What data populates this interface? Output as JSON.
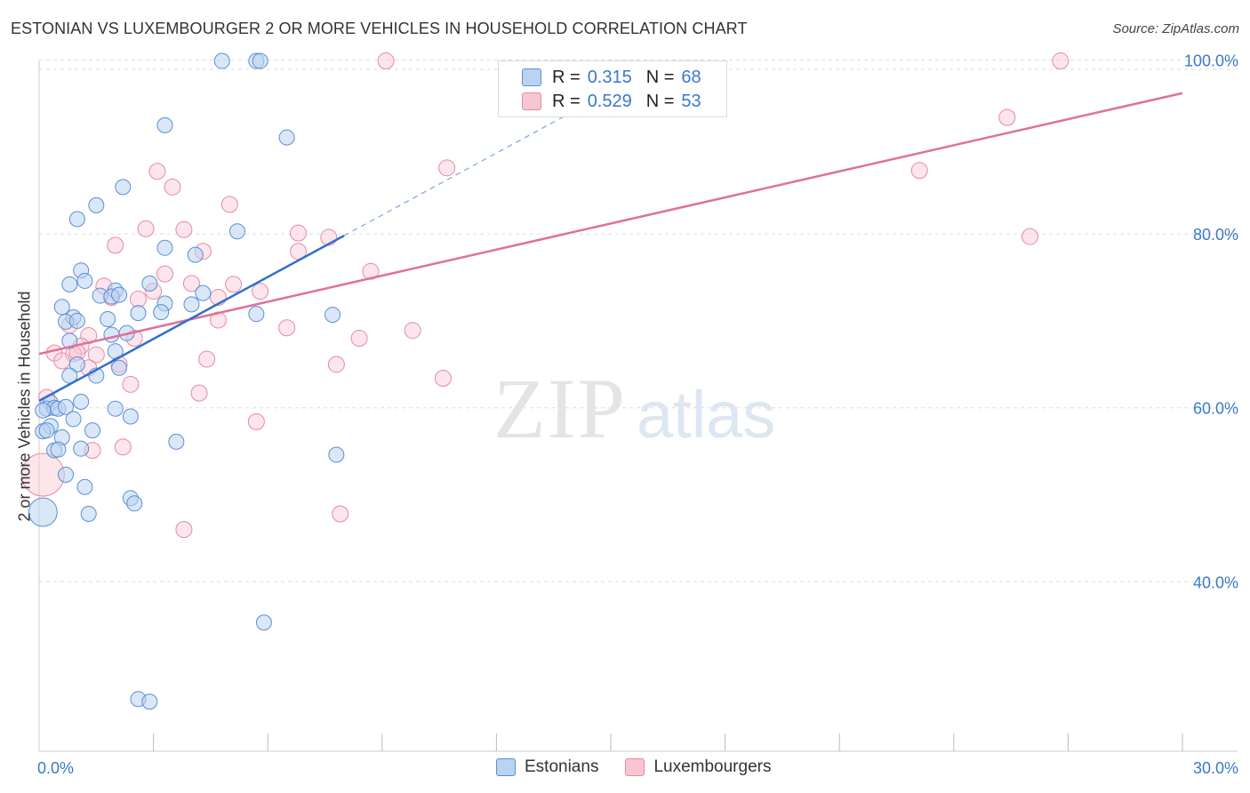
{
  "title": "ESTONIAN VS LUXEMBOURGER 2 OR MORE VEHICLES IN HOUSEHOLD CORRELATION CHART",
  "source": "Source: ZipAtlas.com",
  "watermark": {
    "zip": "ZIP",
    "atlas": "atlas"
  },
  "legend_top": [
    {
      "r_label": "R =",
      "r_value": "0.315",
      "n_label": "N =",
      "n_value": "68"
    },
    {
      "r_label": "R =",
      "r_value": "0.529",
      "n_label": "N =",
      "n_value": "53"
    }
  ],
  "legend_bottom": [
    {
      "label": "Estonians"
    },
    {
      "label": "Luxembourgers"
    }
  ],
  "colors": {
    "estonians_fill": "#b9d3f0",
    "estonians_stroke": "#5b8fd6",
    "estonians_line": "#2f6fcf",
    "lux_fill": "#f8c6d3",
    "lux_stroke": "#e48aa6",
    "lux_line": "#e0709a",
    "tick_label": "#3a78c9",
    "grid": "#dddddd"
  },
  "chart_data": {
    "type": "scatter",
    "title": "ESTONIAN VS LUXEMBOURGER 2 OR MORE VEHICLES IN HOUSEHOLD CORRELATION CHART",
    "xlabel": "",
    "ylabel": "2 or more Vehicles in Household",
    "xlim": [
      0,
      30
    ],
    "ylim": [
      20.5,
      102
    ],
    "x_tick_labels": [
      {
        "value": 0,
        "label": "0.0%"
      },
      {
        "value": 30,
        "label": "30.0%"
      }
    ],
    "y_tick_labels": [
      {
        "value": 40,
        "label": "40.0%"
      },
      {
        "value": 60,
        "label": "60.0%"
      },
      {
        "value": 80,
        "label": "80.0%"
      },
      {
        "value": 100,
        "label": "100.0%"
      }
    ],
    "x_minor_ticks": [
      3,
      6,
      9,
      12,
      15,
      18,
      21,
      24,
      27,
      30
    ],
    "series": [
      {
        "name": "Estonians",
        "r": 0.315,
        "n": 68,
        "trend": {
          "x0": 0,
          "y0": 60.8,
          "x1": 8,
          "y1": 79.8
        },
        "trend_dashed": {
          "x0": 8,
          "y0": 79.8,
          "x1": 16,
          "y1": 98.8
        },
        "points": [
          [
            4.8,
            99.9
          ],
          [
            5.7,
            99.9
          ],
          [
            5.8,
            99.9
          ],
          [
            3.3,
            92.5
          ],
          [
            6.5,
            91.1
          ],
          [
            2.2,
            85.4
          ],
          [
            1.5,
            83.3
          ],
          [
            1.0,
            81.7
          ],
          [
            5.2,
            80.3
          ],
          [
            3.3,
            78.4
          ],
          [
            4.1,
            77.6
          ],
          [
            1.1,
            75.8
          ],
          [
            1.2,
            74.6
          ],
          [
            0.8,
            74.2
          ],
          [
            2.9,
            74.3
          ],
          [
            2.0,
            73.5
          ],
          [
            4.3,
            73.2
          ],
          [
            1.6,
            72.9
          ],
          [
            1.9,
            72.8
          ],
          [
            3.3,
            72.0
          ],
          [
            4.0,
            71.9
          ],
          [
            0.6,
            71.6
          ],
          [
            3.2,
            71.0
          ],
          [
            2.6,
            70.9
          ],
          [
            0.9,
            70.4
          ],
          [
            5.7,
            70.8
          ],
          [
            7.7,
            70.7
          ],
          [
            1.8,
            70.2
          ],
          [
            0.7,
            69.9
          ],
          [
            1.0,
            70.0
          ],
          [
            2.3,
            68.6
          ],
          [
            1.9,
            68.4
          ],
          [
            0.8,
            67.7
          ],
          [
            2.0,
            66.5
          ],
          [
            1.0,
            65.0
          ],
          [
            2.1,
            64.6
          ],
          [
            0.8,
            63.7
          ],
          [
            1.5,
            63.7
          ],
          [
            1.1,
            60.7
          ],
          [
            0.3,
            60.6
          ],
          [
            0.2,
            59.9
          ],
          [
            0.4,
            60.0
          ],
          [
            0.5,
            59.9
          ],
          [
            0.7,
            60.1
          ],
          [
            0.1,
            59.7
          ],
          [
            2.0,
            59.9
          ],
          [
            2.4,
            59.0
          ],
          [
            0.9,
            58.7
          ],
          [
            0.3,
            57.9
          ],
          [
            0.1,
            57.3
          ],
          [
            0.2,
            57.4
          ],
          [
            1.4,
            57.4
          ],
          [
            0.6,
            56.6
          ],
          [
            3.6,
            56.1
          ],
          [
            1.1,
            55.3
          ],
          [
            0.4,
            55.1
          ],
          [
            0.5,
            55.2
          ],
          [
            7.8,
            54.6
          ],
          [
            0.7,
            52.3
          ],
          [
            1.2,
            50.9
          ],
          [
            2.4,
            49.6
          ],
          [
            2.5,
            49.0
          ],
          [
            0.1,
            48.0
          ],
          [
            1.3,
            47.8
          ],
          [
            5.9,
            35.3
          ],
          [
            2.6,
            26.5
          ],
          [
            2.9,
            26.2
          ],
          [
            2.1,
            73.0
          ]
        ]
      },
      {
        "name": "Luxembourgers",
        "r": 0.529,
        "n": 53,
        "trend": {
          "x0": 0,
          "y0": 66.2,
          "x1": 30,
          "y1": 96.2
        },
        "points": [
          [
            9.1,
            99.9
          ],
          [
            26.8,
            99.9
          ],
          [
            25.4,
            93.4
          ],
          [
            10.7,
            87.6
          ],
          [
            23.1,
            87.3
          ],
          [
            3.1,
            87.2
          ],
          [
            3.5,
            85.4
          ],
          [
            5.0,
            83.4
          ],
          [
            2.8,
            80.6
          ],
          [
            3.8,
            80.5
          ],
          [
            6.8,
            80.1
          ],
          [
            7.6,
            79.6
          ],
          [
            26.0,
            79.7
          ],
          [
            2.0,
            78.7
          ],
          [
            4.3,
            78.0
          ],
          [
            6.8,
            78.0
          ],
          [
            8.7,
            75.7
          ],
          [
            3.3,
            75.4
          ],
          [
            4.0,
            74.3
          ],
          [
            1.7,
            74.0
          ],
          [
            5.1,
            74.2
          ],
          [
            3.0,
            73.4
          ],
          [
            5.8,
            73.4
          ],
          [
            1.9,
            72.7
          ],
          [
            2.6,
            72.5
          ],
          [
            4.7,
            72.7
          ],
          [
            4.7,
            70.1
          ],
          [
            0.8,
            69.5
          ],
          [
            6.5,
            69.2
          ],
          [
            9.8,
            68.9
          ],
          [
            1.3,
            68.3
          ],
          [
            2.5,
            68.0
          ],
          [
            8.4,
            68.0
          ],
          [
            1.1,
            67.1
          ],
          [
            0.9,
            66.2
          ],
          [
            1.5,
            66.1
          ],
          [
            0.4,
            66.3
          ],
          [
            1.0,
            66.4
          ],
          [
            0.6,
            65.4
          ],
          [
            4.4,
            65.6
          ],
          [
            7.8,
            65.0
          ],
          [
            2.1,
            65.0
          ],
          [
            1.3,
            64.6
          ],
          [
            10.6,
            63.4
          ],
          [
            2.4,
            62.7
          ],
          [
            4.2,
            61.7
          ],
          [
            0.2,
            61.2
          ],
          [
            5.7,
            58.4
          ],
          [
            2.2,
            55.5
          ],
          [
            1.4,
            55.1
          ],
          [
            0.1,
            52.3
          ],
          [
            7.9,
            47.8
          ],
          [
            3.8,
            46.0
          ]
        ]
      }
    ]
  }
}
